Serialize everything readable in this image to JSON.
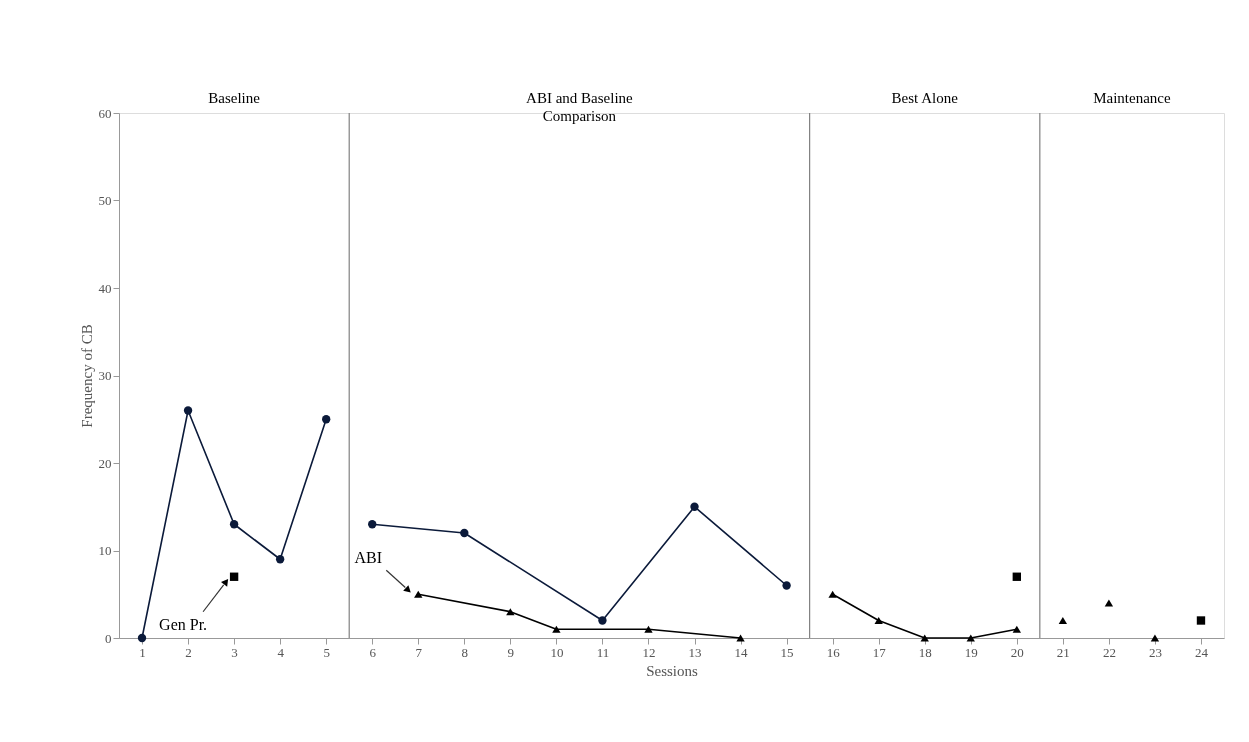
{
  "chart_data": {
    "type": "line",
    "xlabel": "Sessions",
    "ylabel": "Frequency of CB",
    "xlim": [
      0.5,
      24.5
    ],
    "xticks": [
      1,
      2,
      3,
      4,
      5,
      6,
      7,
      8,
      9,
      10,
      11,
      12,
      13,
      14,
      15,
      16,
      17,
      18,
      19,
      20,
      21,
      22,
      23,
      24
    ],
    "ylim": [
      0,
      60
    ],
    "yticks": [
      0,
      10,
      20,
      30,
      40,
      50,
      60
    ],
    "grid": false,
    "line_style": "solid",
    "series": [
      {
        "marker": "circle",
        "color": "#0b1a3a",
        "x": [
          1,
          2,
          3,
          4,
          5
        ],
        "values": [
          0,
          26,
          13,
          9,
          25
        ]
      },
      {
        "marker": "circle",
        "color": "#0b1a3a",
        "x": [
          6,
          8,
          11,
          13,
          15
        ],
        "values": [
          13,
          12,
          2,
          15,
          6
        ]
      },
      {
        "marker": "triangle",
        "color": "#000000",
        "x": [
          7,
          9,
          10,
          12,
          14
        ],
        "values": [
          5,
          3,
          1,
          1,
          0
        ]
      },
      {
        "marker": "triangle",
        "color": "#000000",
        "x": [
          16,
          17,
          18,
          19,
          20
        ],
        "values": [
          5,
          2,
          0,
          0,
          1
        ]
      },
      {
        "type": "scatter",
        "marker": "triangle",
        "color": "#000000",
        "x": [
          21,
          22,
          23
        ],
        "values": [
          2,
          4,
          0
        ]
      },
      {
        "type": "scatter",
        "marker": "square",
        "color": "#000000",
        "x": [
          3,
          20,
          24
        ],
        "values": [
          7,
          7,
          2
        ]
      }
    ],
    "ref_lines": [
      {
        "axis": "x",
        "value": 5.5,
        "color": "#808080"
      },
      {
        "axis": "x",
        "value": 15.5,
        "color": "#808080"
      },
      {
        "axis": "x",
        "value": 20.5,
        "color": "#808080"
      }
    ],
    "annotations": [
      "Baseline",
      "ABI and Baseline\nComparison",
      "Best Alone",
      "Maintenance",
      {
        "text": "Gen Pr.",
        "x": 3,
        "y": 7
      },
      {
        "text": "ABI",
        "x": 7,
        "y": 5
      }
    ]
  }
}
